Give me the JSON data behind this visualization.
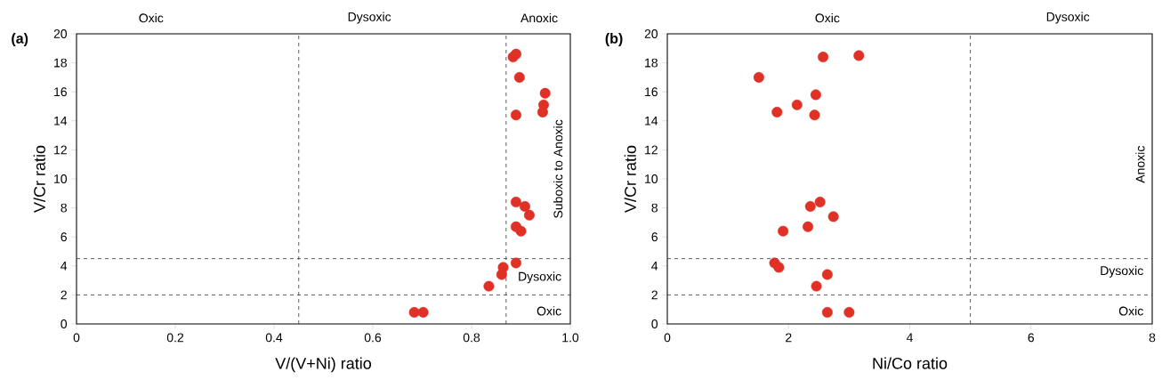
{
  "chart_data": [
    {
      "type": "scatter",
      "title": "(a)",
      "xlabel": "V/(V+Ni) ratio",
      "ylabel": "V/Cr ratio",
      "color": "#e03127",
      "marker": "circle",
      "x": [
        0.884,
        0.89,
        0.897,
        0.949,
        0.946,
        0.944,
        0.89,
        0.89,
        0.908,
        0.917,
        0.89,
        0.9,
        0.89,
        0.864,
        0.861,
        0.835,
        0.684,
        0.702
      ],
      "values": [
        18.4,
        18.6,
        17.0,
        15.9,
        15.1,
        14.6,
        14.4,
        8.4,
        8.1,
        7.5,
        6.7,
        6.4,
        4.2,
        3.9,
        3.4,
        2.6,
        0.8,
        0.8
      ],
      "xlim": [
        0,
        1
      ],
      "xticks": [
        0,
        0.2,
        0.4,
        0.6,
        0.8,
        {
          "value": 1,
          "label": "1.0"
        }
      ],
      "ylim": [
        0,
        20
      ],
      "yticks": [
        0,
        2,
        4,
        6,
        8,
        10,
        12,
        14,
        16,
        18,
        20
      ],
      "ref_lines": [
        {
          "axis": "x",
          "value": 0.45,
          "line_style": "dashed"
        },
        {
          "axis": "x",
          "value": 0.87,
          "line_style": "dashed"
        },
        {
          "axis": "y",
          "value": 4.5,
          "line_style": "dashed"
        },
        {
          "axis": "y",
          "value": 2,
          "line_style": "dashed"
        }
      ],
      "annotations": [
        "Oxic",
        "Dysoxic",
        "Anoxic",
        "Suboxic to Anoxic",
        "Dysoxic",
        "Oxic"
      ]
    },
    {
      "type": "scatter",
      "title": "(b)",
      "xlabel": "Ni/Co ratio",
      "ylabel": "V/Cr ratio",
      "color": "#e03127",
      "marker": "circle",
      "x": [
        2.57,
        3.16,
        1.51,
        2.45,
        2.14,
        1.81,
        2.43,
        2.52,
        2.36,
        2.74,
        2.32,
        1.91,
        1.77,
        1.84,
        2.64,
        2.46,
        2.64,
        3.0
      ],
      "values": [
        18.4,
        18.5,
        17.0,
        15.8,
        15.1,
        14.6,
        14.4,
        8.4,
        8.1,
        7.4,
        6.7,
        6.4,
        4.2,
        3.9,
        3.4,
        2.6,
        0.8,
        0.8
      ],
      "xlim": [
        0,
        8
      ],
      "xticks": [
        0,
        2,
        4,
        6,
        8
      ],
      "ylim": [
        0,
        20
      ],
      "yticks": [
        0,
        2,
        4,
        6,
        8,
        10,
        12,
        14,
        16,
        18,
        20
      ],
      "ref_lines": [
        {
          "axis": "x",
          "value": 5,
          "line_style": "dashed"
        },
        {
          "axis": "y",
          "value": 4.5,
          "line_style": "dashed"
        },
        {
          "axis": "y",
          "value": 2,
          "line_style": "dashed"
        }
      ],
      "annotations": [
        "Oxic",
        "Dysoxic",
        "Anoxic",
        "Dysoxic",
        "Oxic"
      ]
    }
  ]
}
